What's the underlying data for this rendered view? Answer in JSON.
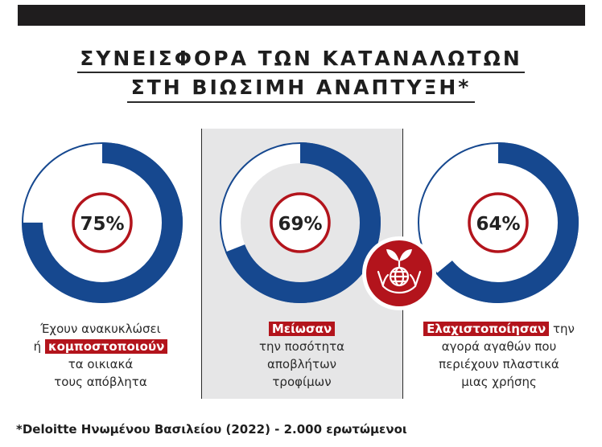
{
  "header": {
    "title_line1": "ΣΥΝΕΙΣΦΟΡΑ ΤΩΝ ΚΑΤΑΝΑΛΩΤΩΝ",
    "title_line2": "ΣΤΗ ΒΙΩΣΙΜΗ ΑΝΑΠΤΥΞΗ*"
  },
  "colors": {
    "ring": "#16488f",
    "highlight": "#b3141c",
    "panel": "#e6e6e7",
    "ring_track": "#ffffff"
  },
  "chart_data": {
    "type": "pie",
    "items": [
      {
        "value": 75,
        "label": "75%",
        "caption_lines": [
          {
            "pre": "Έχουν ανακυκλώσει",
            "hl": "",
            "post": ""
          },
          {
            "pre": "ή ",
            "hl": "κομποστοποιούν",
            "post": ""
          },
          {
            "pre": "τα οικιακά",
            "hl": "",
            "post": ""
          },
          {
            "pre": "τους απόβλητα",
            "hl": "",
            "post": ""
          }
        ]
      },
      {
        "value": 69,
        "label": "69%",
        "caption_lines": [
          {
            "pre": "",
            "hl": "Μείωσαν",
            "post": ""
          },
          {
            "pre": "την ποσότητα",
            "hl": "",
            "post": ""
          },
          {
            "pre": "αποβλήτων",
            "hl": "",
            "post": ""
          },
          {
            "pre": "τροφίμων",
            "hl": "",
            "post": ""
          }
        ]
      },
      {
        "value": 64,
        "label": "64%",
        "caption_lines": [
          {
            "pre": "",
            "hl": "Ελαχιστοποίησαν",
            "post": " την"
          },
          {
            "pre": "αγορά αγαθών που",
            "hl": "",
            "post": ""
          },
          {
            "pre": "περιέχουν πλαστικά",
            "hl": "",
            "post": ""
          },
          {
            "pre": "μιας χρήσης",
            "hl": "",
            "post": ""
          }
        ]
      }
    ]
  },
  "badge_icon": "hands-globe-plant-icon",
  "footnote": "*Deloitte Ηνωμένου Βασιλείου (2022) - 2.000 ερωτώμενοι"
}
